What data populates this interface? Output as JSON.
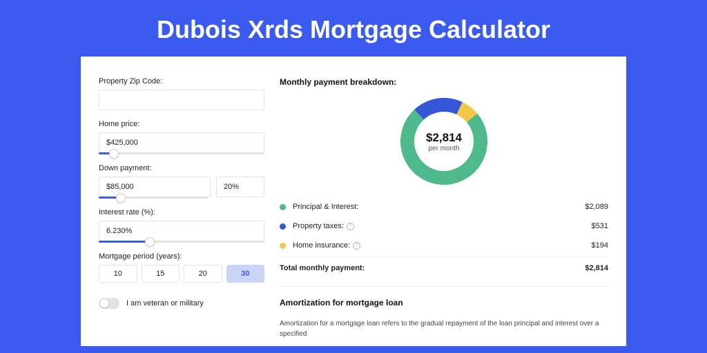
{
  "title": "Dubois Xrds Mortgage Calculator",
  "colors": {
    "page_bg": "#3a5af0",
    "card_bg": "#ffffff",
    "accent": "#3a5af0",
    "text": "#222222",
    "border": "#e2e2e2"
  },
  "form": {
    "zip": {
      "label": "Property Zip Code:",
      "value": ""
    },
    "home_price": {
      "label": "Home price:",
      "value": "$425,000",
      "slider_pct": 9
    },
    "down_payment": {
      "label": "Down payment:",
      "value": "$85,000",
      "pct_value": "20%",
      "slider_pct": 20
    },
    "interest_rate": {
      "label": "Interest rate (%):",
      "value": "6.230%",
      "slider_pct": 31
    },
    "mortgage_period": {
      "label": "Mortgage period (years):",
      "options": [
        "10",
        "15",
        "20",
        "30"
      ],
      "selected": "30"
    },
    "veteran": {
      "label": "I am veteran or military",
      "checked": false
    }
  },
  "breakdown": {
    "title": "Monthly payment breakdown:",
    "total_amount": "$2,814",
    "total_sub": "per month",
    "donut": {
      "type": "donut",
      "size": 126,
      "thickness": 20,
      "segments": [
        {
          "key": "principal_interest",
          "value": 2089,
          "color": "#4eb98a",
          "pct": 74.2
        },
        {
          "key": "property_taxes",
          "value": 531,
          "color": "#3357d6",
          "pct": 18.9
        },
        {
          "key": "home_insurance",
          "value": 194,
          "color": "#f2c84b",
          "pct": 6.9
        }
      ],
      "start_angle_deg": -40
    },
    "items": [
      {
        "label": "Principal & Interest:",
        "value": "$2,089",
        "color": "#4eb98a",
        "help": false
      },
      {
        "label": "Property taxes:",
        "value": "$531",
        "color": "#3357d6",
        "help": true
      },
      {
        "label": "Home insurance:",
        "value": "$194",
        "color": "#f2c84b",
        "help": true
      }
    ],
    "total_row": {
      "label": "Total monthly payment:",
      "value": "$2,814"
    }
  },
  "amortization": {
    "title": "Amortization for mortgage loan",
    "body": "Amortization for a mortgage loan refers to the gradual repayment of the loan principal and interest over a specified"
  }
}
